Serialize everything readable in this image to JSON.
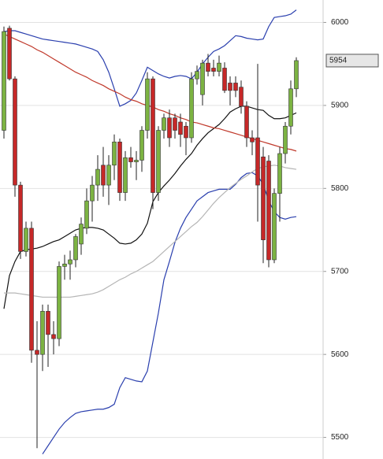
{
  "chart_data": {
    "type": "candlestick",
    "ylim": [
      5474,
      6027
    ],
    "yticks": [
      5500,
      5600,
      5700,
      5800,
      5900,
      6000
    ],
    "grid": true,
    "up_color": "#7cb342",
    "down_color": "#c62828",
    "open": [
      5870,
      5993,
      5932,
      5804,
      5724,
      5752,
      5605,
      5600,
      5652,
      5624,
      5619,
      5706,
      5709,
      5714,
      5733,
      5752,
      5785,
      5804,
      5828,
      5804,
      5828,
      5856,
      5795,
      5837,
      5832,
      5834,
      5870,
      5932,
      5795,
      5870,
      5885,
      5885,
      5880,
      5875,
      5861,
      5932,
      5913,
      5951,
      5945,
      5941,
      5945,
      5927,
      5927,
      5922,
      5899,
      5861,
      5861,
      5838,
      5833,
      5714,
      5794,
      5842,
      5875,
      5920
    ],
    "high": [
      5995,
      5996,
      5935,
      5808,
      5760,
      5760,
      5640,
      5660,
      5660,
      5640,
      5712,
      5720,
      5725,
      5745,
      5765,
      5800,
      5815,
      5840,
      5850,
      5840,
      5865,
      5860,
      5845,
      5850,
      5845,
      5875,
      5940,
      5935,
      5875,
      5890,
      5895,
      5890,
      5890,
      5880,
      5940,
      5948,
      5955,
      5962,
      5955,
      5960,
      5952,
      5935,
      5935,
      5930,
      5905,
      5870,
      5950,
      5850,
      5840,
      5800,
      5850,
      5880,
      5930,
      5958
    ],
    "low": [
      5860,
      5930,
      5790,
      5715,
      5718,
      5590,
      5487,
      5580,
      5585,
      5600,
      5610,
      5690,
      5690,
      5705,
      5720,
      5745,
      5760,
      5785,
      5790,
      5780,
      5810,
      5785,
      5785,
      5825,
      5810,
      5820,
      5860,
      5775,
      5785,
      5860,
      5850,
      5860,
      5850,
      5840,
      5855,
      5925,
      5900,
      5935,
      5935,
      5935,
      5915,
      5900,
      5910,
      5890,
      5850,
      5840,
      5760,
      5710,
      5705,
      5710,
      5760,
      5830,
      5865,
      5910
    ],
    "close": [
      5989,
      5932,
      5804,
      5724,
      5752,
      5605,
      5600,
      5652,
      5624,
      5619,
      5706,
      5709,
      5714,
      5742,
      5757,
      5785,
      5804,
      5823,
      5804,
      5828,
      5856,
      5795,
      5837,
      5832,
      5834,
      5870,
      5932,
      5795,
      5870,
      5885,
      5861,
      5870,
      5865,
      5861,
      5932,
      5941,
      5951,
      5941,
      5941,
      5951,
      5918,
      5918,
      5918,
      5899,
      5861,
      5856,
      5804,
      5738,
      5714,
      5794,
      5842,
      5875,
      5920,
      5954
    ],
    "lines": [
      {
        "color": "#2a3fae",
        "values": [
          5989,
          5990,
          5990,
          5988,
          5986,
          5984,
          5982,
          5980,
          5979,
          5978,
          5977,
          5976,
          5975,
          5974,
          5972,
          5970,
          5968,
          5965,
          5955,
          5940,
          5920,
          5899,
          5902,
          5906,
          5915,
          5930,
          5946,
          5942,
          5938,
          5935,
          5933,
          5935,
          5936,
          5935,
          5932,
          5940,
          5950,
          5958,
          5965,
          5968,
          5972,
          5978,
          5984,
          5983,
          5981,
          5980,
          5979,
          5980,
          5995,
          6006,
          6007,
          6008,
          6010,
          6015
        ]
      },
      {
        "color": "#2a3fae",
        "values": [
          null,
          null,
          null,
          null,
          null,
          null,
          null,
          5480,
          5490,
          5500,
          5510,
          5518,
          5524,
          5529,
          5531,
          5532,
          5533,
          5534,
          5534,
          5536,
          5540,
          5560,
          5572,
          5570,
          5568,
          5567,
          5580,
          5615,
          5650,
          5690,
          5712,
          5735,
          5752,
          5765,
          5775,
          5785,
          5790,
          5795,
          5797,
          5799,
          5799,
          5799,
          5805,
          5813,
          5818,
          5819,
          5815,
          5805,
          5785,
          5772,
          5765,
          5763,
          5765,
          5766
        ]
      },
      {
        "color": "#111111",
        "values": [
          5655,
          5695,
          5712,
          5724,
          5726,
          5727,
          5728,
          5730,
          5733,
          5736,
          5738,
          5742,
          5746,
          5750,
          5752,
          5753,
          5753,
          5752,
          5750,
          5745,
          5740,
          5734,
          5733,
          5734,
          5738,
          5745,
          5758,
          5784,
          5795,
          5803,
          5810,
          5818,
          5827,
          5835,
          5842,
          5852,
          5860,
          5867,
          5872,
          5877,
          5884,
          5892,
          5896,
          5899,
          5899,
          5897,
          5895,
          5894,
          5888,
          5884,
          5884,
          5885,
          5888,
          5891
        ]
      },
      {
        "color": "#c0392b",
        "values": [
          5986,
          5983,
          5980,
          5977,
          5974,
          5971,
          5967,
          5964,
          5960,
          5956,
          5952,
          5948,
          5944,
          5940,
          5937,
          5934,
          5930,
          5927,
          5924,
          5920,
          5917,
          5914,
          5910,
          5907,
          5905,
          5902,
          5900,
          5898,
          5895,
          5893,
          5890,
          5888,
          5885,
          5883,
          5880,
          5879,
          5877,
          5875,
          5873,
          5872,
          5870,
          5868,
          5866,
          5864,
          5862,
          5860,
          5858,
          5856,
          5854,
          5852,
          5850,
          5848,
          5847,
          5845
        ]
      },
      {
        "color": "#b5b5b5",
        "values": [
          5674,
          5674,
          5674,
          5673,
          5672,
          5671,
          5670,
          5669,
          5669,
          5669,
          5669,
          5669,
          5669,
          5670,
          5671,
          5672,
          5673,
          5675,
          5678,
          5682,
          5686,
          5690,
          5693,
          5697,
          5700,
          5704,
          5708,
          5712,
          5718,
          5724,
          5730,
          5736,
          5742,
          5748,
          5754,
          5759,
          5766,
          5774,
          5782,
          5789,
          5795,
          5801,
          5806,
          5811,
          5815,
          5820,
          5824,
          5826,
          5827,
          5828,
          5827,
          5825,
          5824,
          5823
        ]
      }
    ],
    "last_price": 5954
  }
}
